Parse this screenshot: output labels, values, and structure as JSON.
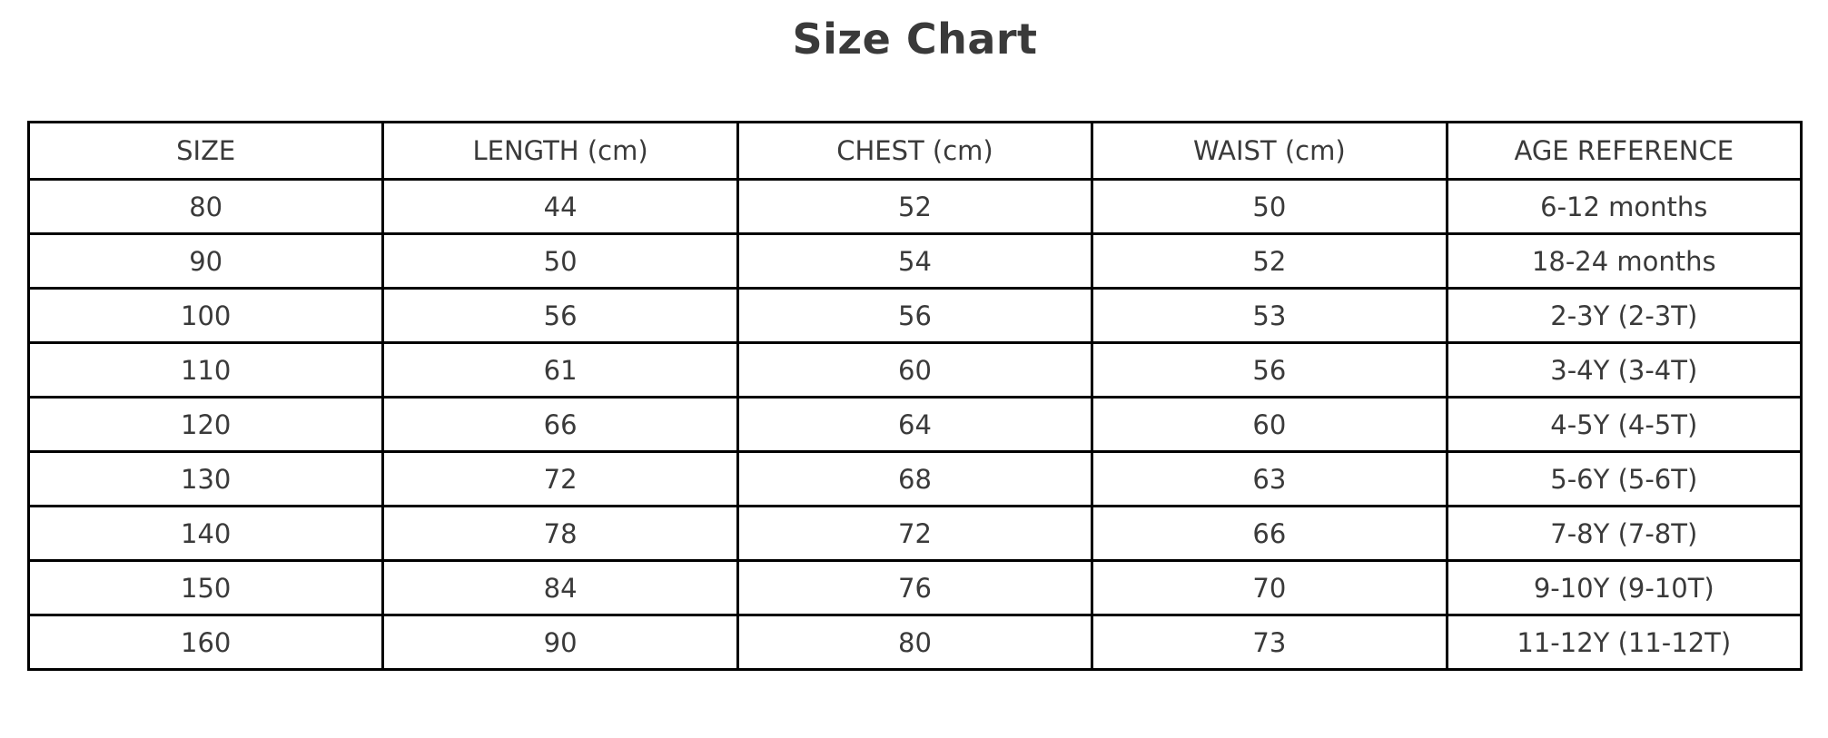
{
  "title": "Size Chart",
  "colors": {
    "text": "#3a3a3a",
    "border": "#000000",
    "background": "#ffffff"
  },
  "chart_data": {
    "type": "table",
    "title": "Size Chart",
    "columns": [
      "SIZE",
      "LENGTH (cm)",
      "CHEST (cm)",
      "WAIST (cm)",
      "AGE REFERENCE"
    ],
    "rows": [
      [
        "80",
        "44",
        "52",
        "50",
        "6-12 months"
      ],
      [
        "90",
        "50",
        "54",
        "52",
        "18-24 months"
      ],
      [
        "100",
        "56",
        "56",
        "53",
        "2-3Y (2-3T)"
      ],
      [
        "110",
        "61",
        "60",
        "56",
        "3-4Y (3-4T)"
      ],
      [
        "120",
        "66",
        "64",
        "60",
        "4-5Y (4-5T)"
      ],
      [
        "130",
        "72",
        "68",
        "63",
        "5-6Y (5-6T)"
      ],
      [
        "140",
        "78",
        "72",
        "66",
        "7-8Y (7-8T)"
      ],
      [
        "150",
        "84",
        "76",
        "70",
        "9-10Y (9-10T)"
      ],
      [
        "160",
        "90",
        "80",
        "73",
        "11-12Y (11-12T)"
      ]
    ],
    "layout": {
      "grid": true,
      "header_row": true,
      "cell_alignment": "center"
    }
  }
}
